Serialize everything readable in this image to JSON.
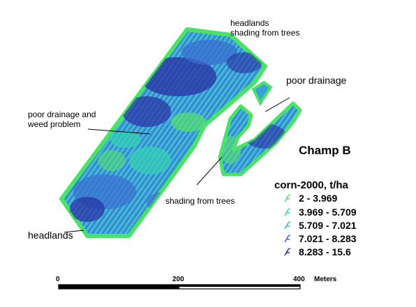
{
  "map": {
    "field_name": "Champ B",
    "annotations": {
      "headlands_top": "headlands\nshading from trees",
      "poor_drainage": "poor drainage",
      "poor_drainage_weed": "poor drainage and\nweed problem",
      "shading_trees": "shading from trees",
      "headlands_bottom": "headlands"
    }
  },
  "legend": {
    "title": "corn-2000, t/ha",
    "classes": [
      {
        "label": "2 - 3.969",
        "color": "#56e36b"
      },
      {
        "label": "3.969 - 5.709",
        "color": "#35d3b3"
      },
      {
        "label": "5.709 - 7.021",
        "color": "#3bb7cf"
      },
      {
        "label": "7.021 - 8.283",
        "color": "#3a6fd2"
      },
      {
        "label": "8.283 - 15.6",
        "color": "#2a2fa3"
      }
    ]
  },
  "scale_bar": {
    "ticks": [
      "0",
      "200",
      "400"
    ],
    "unit": "Meters"
  }
}
